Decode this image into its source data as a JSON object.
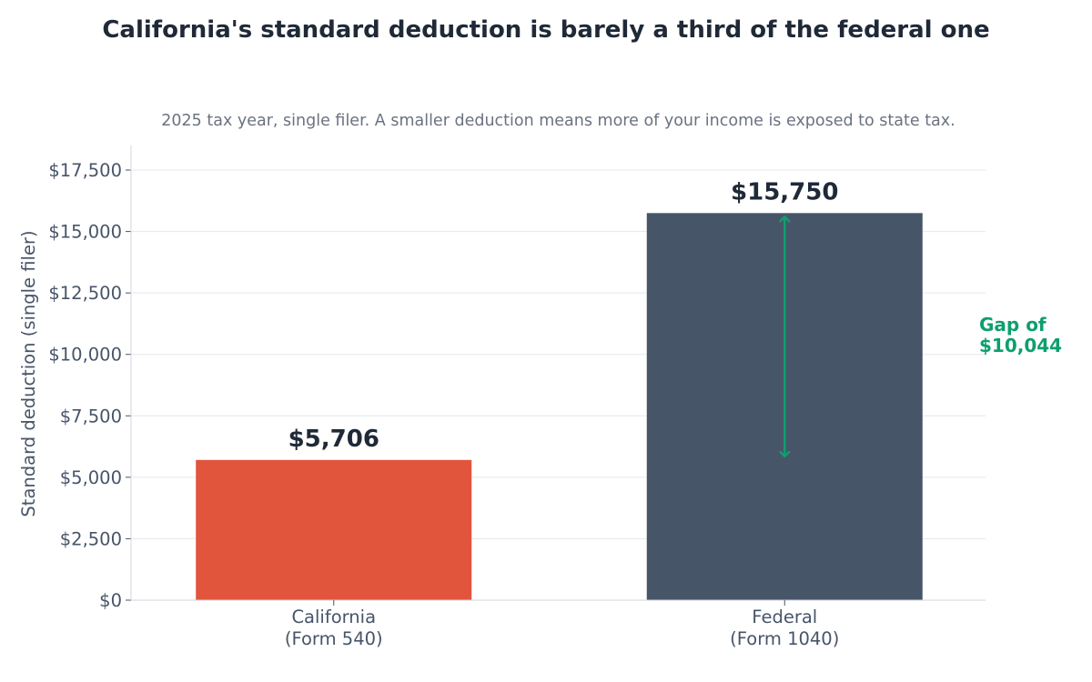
{
  "chart_data": {
    "type": "bar",
    "title": "California's standard deduction is barely a third of the federal one",
    "subtitle": "2025 tax year, single filer. A smaller deduction means more of your income is exposed to state tax.",
    "ylabel": "Standard deduction (single filer)",
    "xlabel": "",
    "ylim": [
      0,
      18500
    ],
    "yticks": [
      0,
      2500,
      5000,
      7500,
      10000,
      12500,
      15000,
      17500
    ],
    "ytick_labels": [
      "$0",
      "$2,500",
      "$5,000",
      "$7,500",
      "$10,000",
      "$12,500",
      "$15,000",
      "$17,500"
    ],
    "grid": true,
    "categories": [
      [
        "California",
        "(Form 540)"
      ],
      [
        "Federal",
        "(Form 1040)"
      ]
    ],
    "values": [
      5706,
      15750
    ],
    "value_labels": [
      "$5,706",
      "$15,750"
    ],
    "colors": [
      "#e0553c",
      "#475569"
    ],
    "annotation": {
      "lines": [
        "Gap of",
        "$10,044"
      ],
      "from": 5706,
      "to": 15750,
      "category_index": 1,
      "color": "#0e9f6e"
    }
  }
}
